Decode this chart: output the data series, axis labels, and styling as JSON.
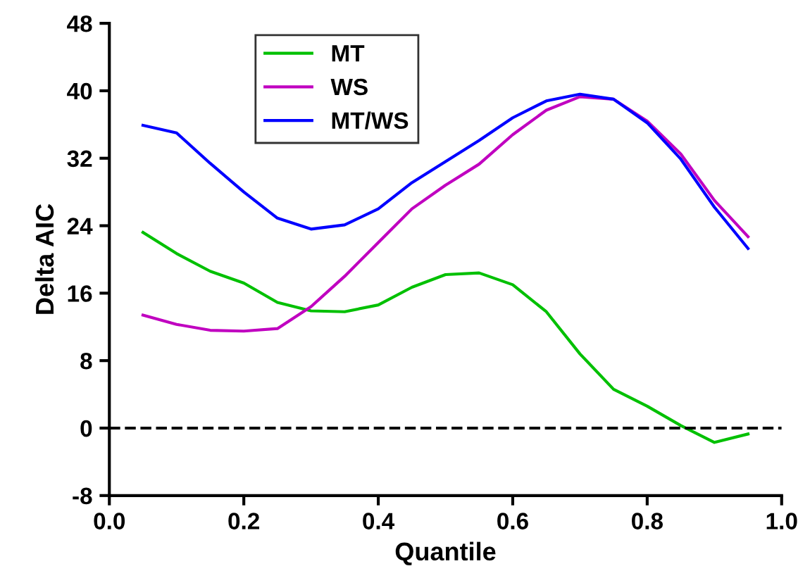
{
  "chart_data": {
    "type": "line",
    "xlabel": "Quantile",
    "ylabel": "Delta AIC",
    "x": [
      0.05,
      0.1,
      0.15,
      0.2,
      0.25,
      0.3,
      0.35,
      0.4,
      0.45,
      0.5,
      0.55,
      0.6,
      0.65,
      0.7,
      0.75,
      0.8,
      0.85,
      0.9,
      0.95
    ],
    "series": [
      {
        "name": "MT",
        "color": "#00c000",
        "values": [
          23.2,
          20.7,
          18.6,
          17.2,
          14.9,
          13.9,
          13.8,
          14.6,
          16.7,
          18.2,
          18.4,
          17.0,
          13.8,
          8.8,
          4.6,
          2.6,
          0.3,
          -1.7,
          -0.7
        ]
      },
      {
        "name": "WS",
        "color": "#c000c0",
        "values": [
          13.4,
          12.3,
          11.6,
          11.5,
          11.8,
          14.4,
          18.0,
          22.0,
          26.0,
          28.8,
          31.3,
          34.8,
          37.7,
          39.3,
          39.0,
          36.4,
          32.5,
          27.0,
          22.7
        ]
      },
      {
        "name": "MT/WS",
        "color": "#0000ff",
        "values": [
          35.9,
          35.0,
          31.4,
          28.0,
          24.9,
          23.6,
          24.1,
          26.0,
          29.1,
          31.6,
          34.1,
          36.8,
          38.8,
          39.6,
          39.0,
          36.2,
          31.9,
          26.2,
          21.3
        ]
      }
    ],
    "xlim": [
      0.0,
      1.0
    ],
    "xticks": [
      {
        "value": 0,
        "label": "0.0"
      },
      0.2,
      0.4,
      0.6,
      0.8,
      {
        "value": 1,
        "label": "1.0"
      }
    ],
    "ylim": [
      -8,
      48
    ],
    "yticks": [
      -8,
      0,
      8,
      16,
      24,
      32,
      40,
      48
    ],
    "ref_lines": [
      {
        "axis": "y",
        "value": 0,
        "color": "#000000",
        "line_style": "dashed"
      }
    ],
    "grid": false,
    "legend": "top left",
    "marker": "none",
    "line_style": "solid"
  }
}
